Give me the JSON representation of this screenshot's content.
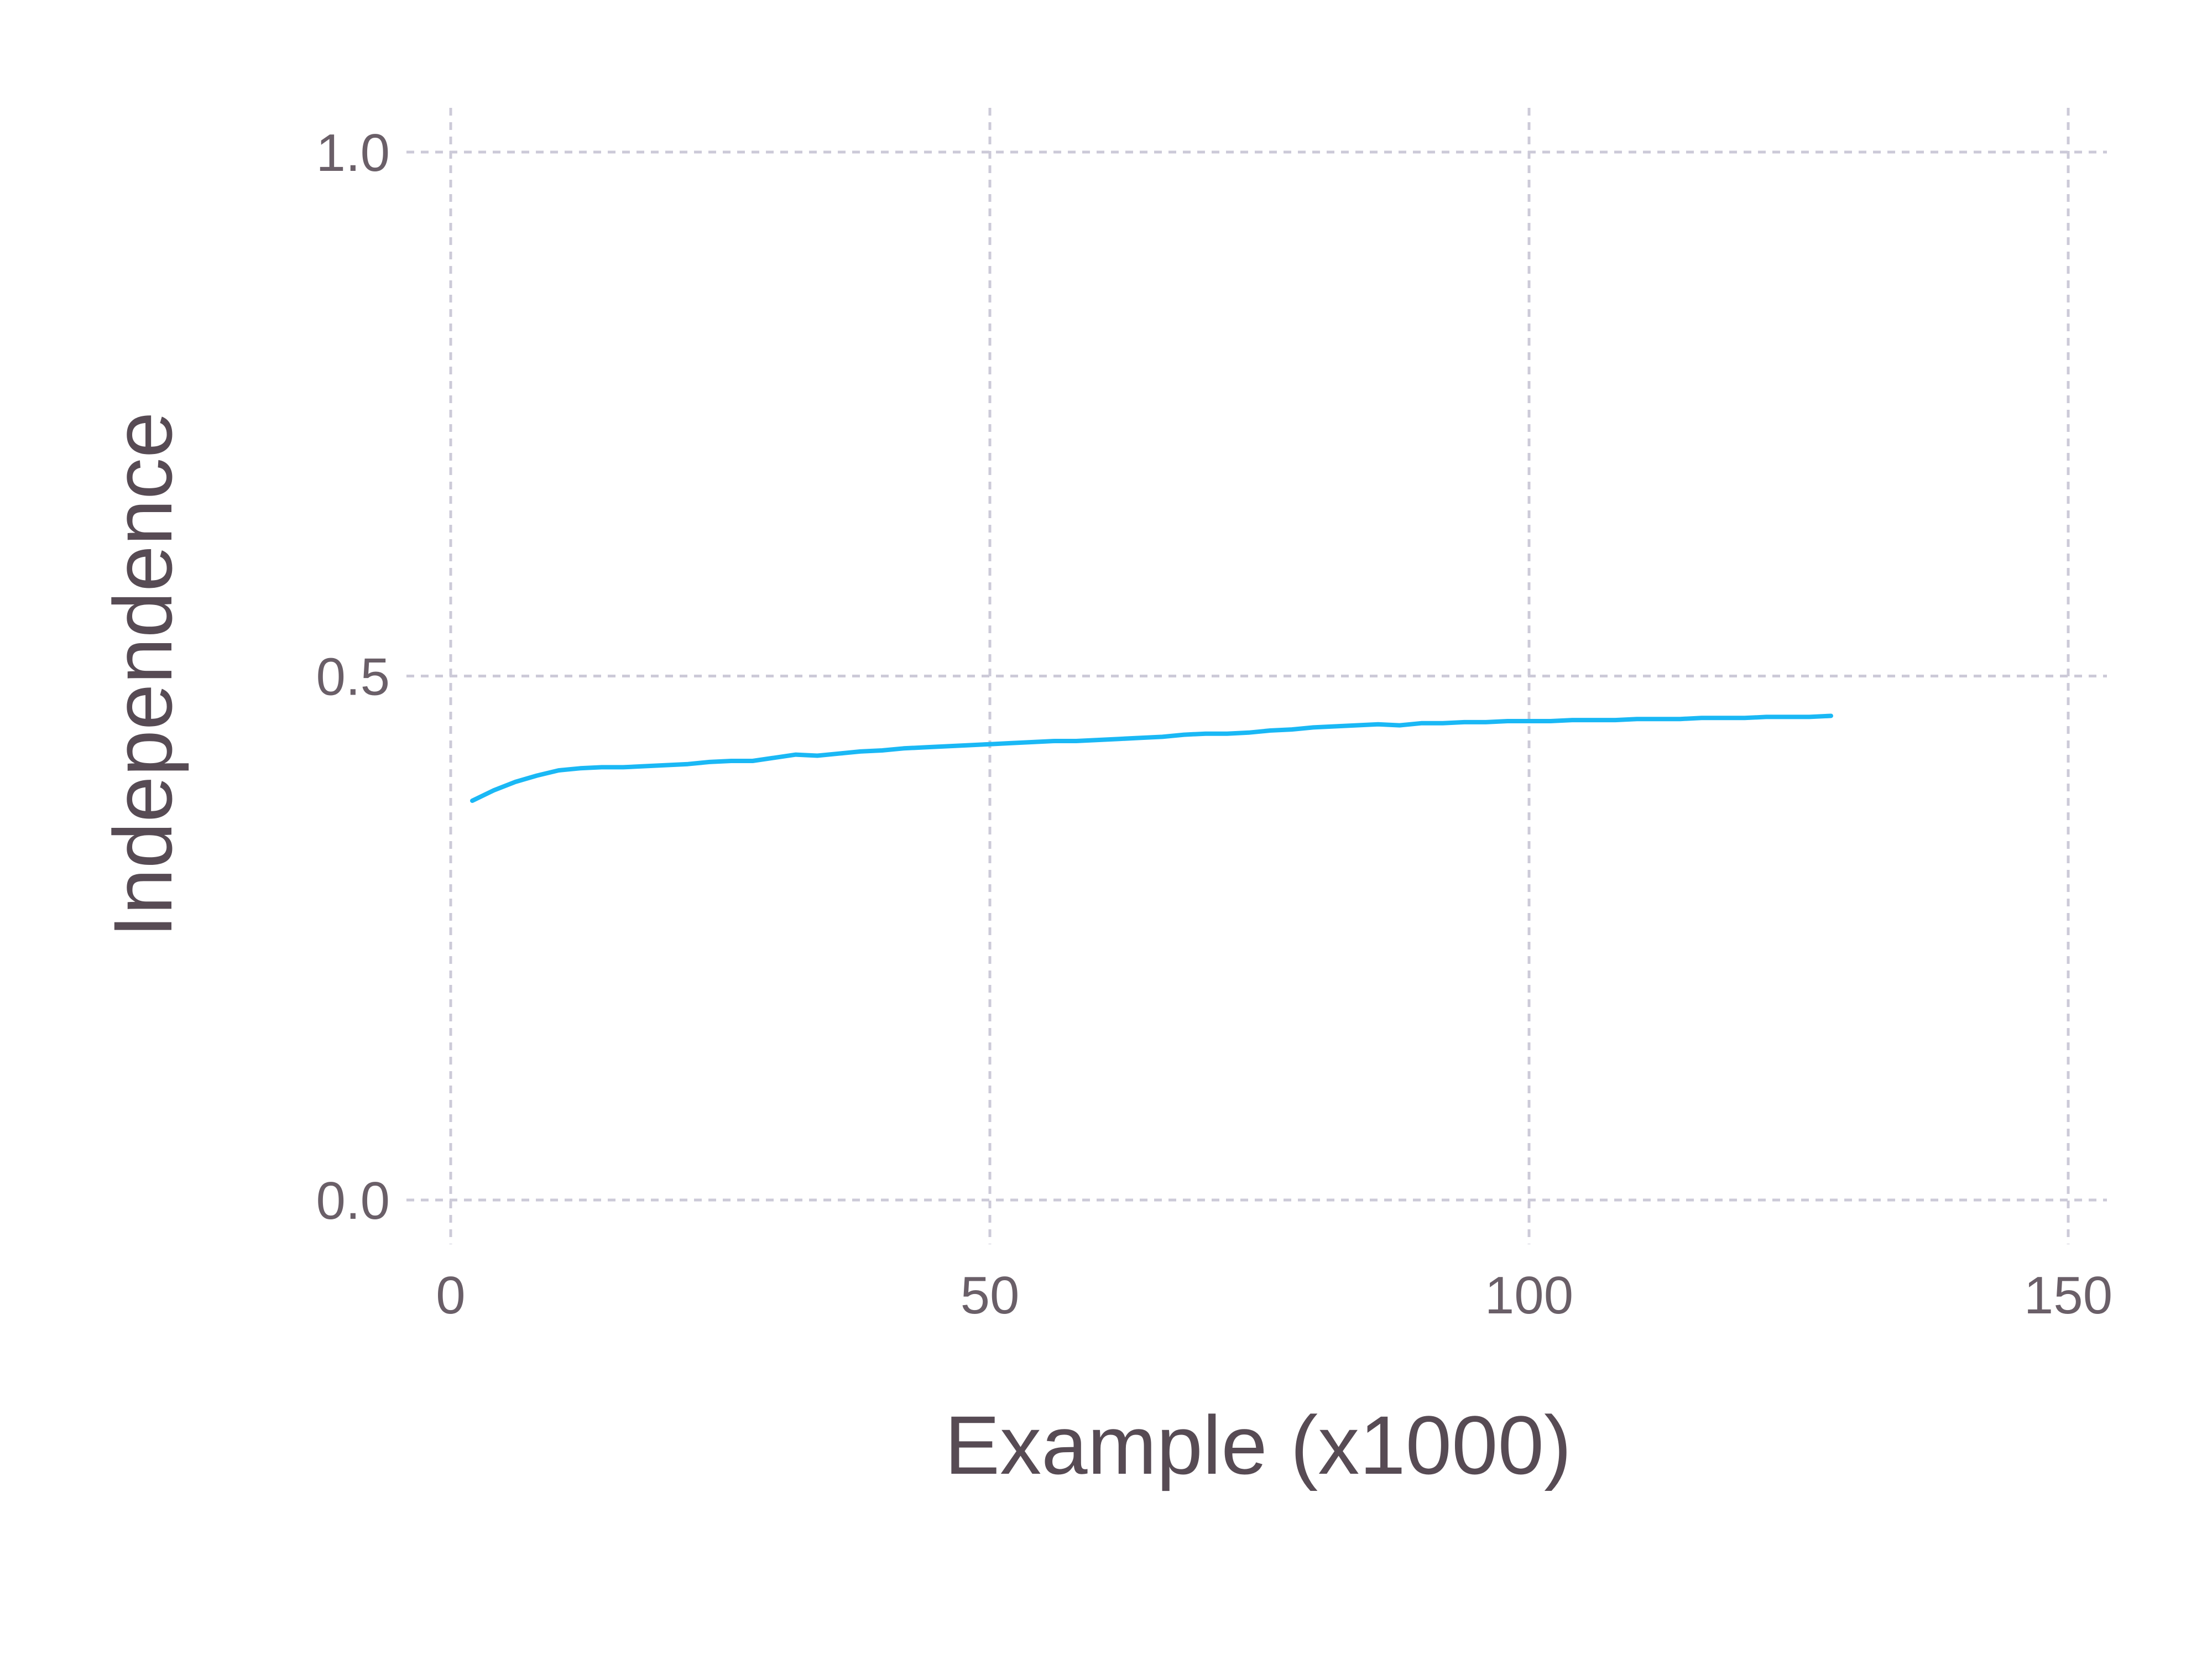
{
  "chart_data": {
    "type": "line",
    "title": "",
    "xlabel": "Example (x1000)",
    "ylabel": "Independence",
    "xlim": [
      0,
      150
    ],
    "ylim": [
      0,
      1
    ],
    "x_ticks": [
      "0",
      "50",
      "100",
      "150"
    ],
    "y_ticks": [
      "0.0",
      "0.5",
      "1.0"
    ],
    "grid": true,
    "legend": "none",
    "series": [
      {
        "color": "#1ab8f5",
        "x": [
          2,
          4,
          6,
          8,
          10,
          12,
          14,
          16,
          18,
          20,
          22,
          24,
          26,
          28,
          30,
          32,
          34,
          36,
          38,
          40,
          42,
          44,
          46,
          48,
          50,
          52,
          54,
          56,
          58,
          60,
          62,
          64,
          66,
          68,
          70,
          72,
          74,
          76,
          78,
          80,
          82,
          84,
          86,
          88,
          90,
          92,
          94,
          96,
          98,
          100,
          102,
          104,
          106,
          108,
          110,
          112,
          114,
          116,
          118,
          120,
          122,
          124,
          126,
          128
        ],
        "y": [
          0.381,
          0.391,
          0.399,
          0.405,
          0.41,
          0.412,
          0.413,
          0.413,
          0.414,
          0.415,
          0.416,
          0.418,
          0.419,
          0.419,
          0.422,
          0.425,
          0.424,
          0.426,
          0.428,
          0.429,
          0.431,
          0.432,
          0.433,
          0.434,
          0.435,
          0.436,
          0.437,
          0.438,
          0.438,
          0.439,
          0.44,
          0.441,
          0.442,
          0.444,
          0.445,
          0.445,
          0.446,
          0.448,
          0.449,
          0.451,
          0.452,
          0.453,
          0.454,
          0.453,
          0.455,
          0.455,
          0.456,
          0.456,
          0.457,
          0.457,
          0.457,
          0.458,
          0.458,
          0.458,
          0.459,
          0.459,
          0.459,
          0.46,
          0.46,
          0.46,
          0.461,
          0.461,
          0.461,
          0.462
        ]
      }
    ]
  }
}
